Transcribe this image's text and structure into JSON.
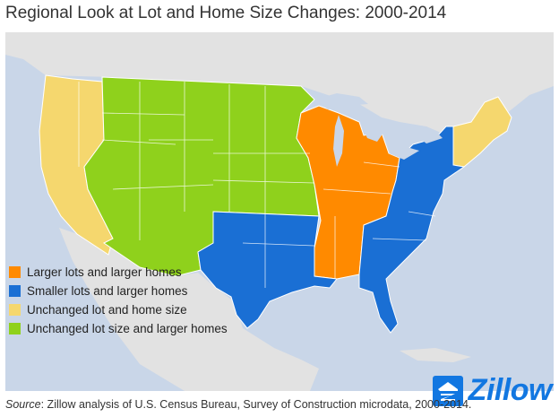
{
  "title": "Regional Look at Lot and Home Size Changes: 2000-2014",
  "legend": [
    {
      "label": "Larger lots and larger homes",
      "color": "#ff8a00"
    },
    {
      "label": "Smaller lots and larger homes",
      "color": "#1a6fd4"
    },
    {
      "label": "Unchanged lot and home size",
      "color": "#f5d76e"
    },
    {
      "label": "Unchanged lot size and larger homes",
      "color": "#8fd11c"
    }
  ],
  "colors": {
    "water": "#c9d6e8",
    "land": "#e2e2e2",
    "state_border": "#ffffff",
    "logo_blue": "#1277e1"
  },
  "logo": {
    "text": "Zillow",
    "icon": "zillow-house-icon"
  },
  "source": {
    "label": "Source",
    "text": ": Zillow analysis of U.S. Census Bureau, Survey of Construction microdata, 2000-2014."
  }
}
